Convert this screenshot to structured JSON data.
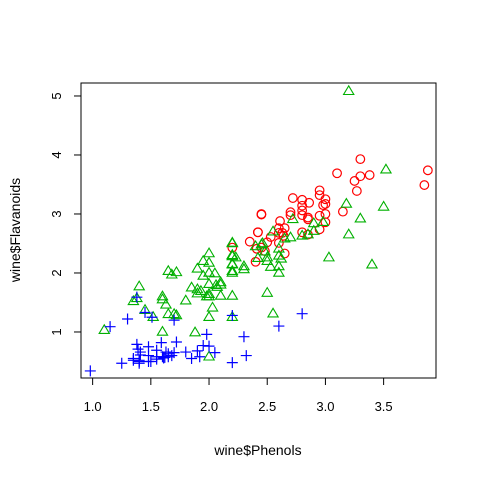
{
  "chart_data": {
    "type": "scatter",
    "title": "",
    "xlabel": "wine$Phenols",
    "ylabel": "wine$Flavanoids",
    "xlim": [
      0.9,
      3.95
    ],
    "ylim": [
      0.22,
      5.22
    ],
    "x_ticks": [
      1.0,
      1.5,
      2.0,
      2.5,
      3.0,
      3.5
    ],
    "x_tick_labels": [
      "1.0",
      "1.5",
      "2.0",
      "2.5",
      "3.0",
      "3.5"
    ],
    "y_ticks": [
      1,
      2,
      3,
      4,
      5
    ],
    "y_tick_labels": [
      "1",
      "2",
      "3",
      "4",
      "5"
    ],
    "grid": false,
    "legend": "none",
    "series": [
      {
        "marker": "circle",
        "color": "#ff0000",
        "points": [
          [
            2.8,
            3.06
          ],
          [
            2.65,
            2.76
          ],
          [
            2.8,
            3.24
          ],
          [
            3.85,
            3.49
          ],
          [
            2.8,
            2.69
          ],
          [
            3.27,
            3.39
          ],
          [
            2.5,
            2.52
          ],
          [
            2.6,
            2.51
          ],
          [
            2.8,
            2.98
          ],
          [
            2.98,
            3.15
          ],
          [
            2.95,
            3.32
          ],
          [
            2.2,
            2.43
          ],
          [
            2.6,
            2.76
          ],
          [
            3.1,
            3.69
          ],
          [
            3.3,
            3.64
          ],
          [
            2.85,
            2.91
          ],
          [
            2.8,
            3.14
          ],
          [
            2.95,
            3.4
          ],
          [
            3.3,
            3.93
          ],
          [
            2.7,
            3.03
          ],
          [
            3.0,
            3.17
          ],
          [
            2.41,
            2.41
          ],
          [
            2.61,
            2.88
          ],
          [
            2.48,
            2.37
          ],
          [
            2.53,
            2.61
          ],
          [
            2.63,
            2.68
          ],
          [
            2.85,
            2.94
          ],
          [
            2.4,
            2.19
          ],
          [
            2.95,
            2.97
          ],
          [
            2.65,
            2.33
          ],
          [
            3.0,
            3.25
          ],
          [
            2.86,
            3.19
          ],
          [
            2.42,
            2.69
          ],
          [
            2.95,
            2.74
          ],
          [
            2.35,
            2.53
          ],
          [
            2.7,
            2.98
          ],
          [
            2.6,
            2.68
          ],
          [
            2.45,
            2.43
          ],
          [
            3.15,
            3.04
          ],
          [
            2.45,
            3.0
          ],
          [
            3.25,
            3.56
          ],
          [
            2.64,
            2.63
          ],
          [
            3.0,
            3.0
          ],
          [
            2.85,
            2.65
          ],
          [
            3.88,
            3.74
          ],
          [
            2.72,
            3.27
          ],
          [
            2.45,
            2.99
          ],
          [
            3.38,
            3.66
          ],
          [
            3.0,
            2.86
          ],
          [
            2.42,
            2.69
          ]
        ]
      },
      {
        "marker": "triangle",
        "color": "#00b000",
        "points": [
          [
            1.1,
            1.03
          ],
          [
            2.2,
            2.5
          ],
          [
            2.2,
            2.3
          ],
          [
            2.0,
            1.6
          ],
          [
            2.5,
            2.2
          ],
          [
            2.6,
            2.11
          ],
          [
            2.5,
            1.66
          ],
          [
            2.2,
            2.0
          ],
          [
            2.2,
            2.3
          ],
          [
            1.65,
            1.3
          ],
          [
            2.8,
            2.63
          ],
          [
            1.95,
            2.2
          ],
          [
            1.6,
            1.55
          ],
          [
            2.1,
            1.8
          ],
          [
            2.0,
            2.0
          ],
          [
            1.65,
            2.03
          ],
          [
            1.6,
            1.0
          ],
          [
            2.3,
            2.11
          ],
          [
            2.45,
            2.48
          ],
          [
            2.6,
            2.0
          ],
          [
            3.2,
            5.08
          ],
          [
            2.65,
            2.58
          ],
          [
            1.9,
            2.07
          ],
          [
            1.72,
            2.01
          ],
          [
            2.2,
            2.15
          ],
          [
            2.0,
            1.81
          ],
          [
            2.98,
            2.86
          ],
          [
            2.2,
            2.14
          ],
          [
            2.3,
            2.06
          ],
          [
            2.4,
            2.45
          ],
          [
            2.6,
            2.29
          ],
          [
            2.53,
            2.1
          ],
          [
            2.0,
            2.17
          ],
          [
            1.98,
            1.6
          ],
          [
            1.38,
            1.57
          ],
          [
            1.4,
            1.77
          ],
          [
            2.46,
            2.5
          ],
          [
            2.0,
            2.33
          ],
          [
            2.55,
            2.7
          ],
          [
            2.0,
            1.64
          ],
          [
            3.52,
            3.75
          ],
          [
            3.5,
            3.12
          ],
          [
            3.3,
            2.92
          ],
          [
            2.2,
            1.25
          ],
          [
            1.52,
            1.25
          ],
          [
            1.7,
            1.3
          ],
          [
            1.85,
            1.75
          ],
          [
            2.06,
            1.79
          ],
          [
            1.9,
            1.72
          ],
          [
            1.72,
            1.28
          ],
          [
            2.55,
            1.31
          ],
          [
            1.35,
            1.52
          ],
          [
            1.88,
            0.99
          ],
          [
            2.62,
            2.24
          ],
          [
            2.48,
            2.36
          ],
          [
            2.05,
            1.99
          ],
          [
            3.4,
            2.14
          ],
          [
            2.42,
            2.25
          ],
          [
            2.2,
            2.03
          ],
          [
            2.72,
            2.91
          ],
          [
            2.2,
            1.61
          ],
          [
            1.93,
            1.69
          ],
          [
            2.0,
            1.25
          ],
          [
            1.45,
            1.37
          ],
          [
            1.8,
            1.53
          ],
          [
            2.07,
            1.76
          ],
          [
            1.6,
            1.6
          ],
          [
            1.9,
            1.65
          ],
          [
            1.68,
            1.97
          ],
          [
            2.1,
            1.84
          ],
          [
            2.0,
            0.58
          ],
          [
            2.03,
            1.41
          ],
          [
            2.9,
            2.71
          ],
          [
            2.2,
            2.51
          ],
          [
            3.2,
            2.65
          ],
          [
            2.5,
            2.26
          ],
          [
            3.18,
            3.17
          ],
          [
            2.85,
            2.65
          ],
          [
            2.7,
            2.6
          ],
          [
            2.9,
            2.84
          ],
          [
            2.23,
            2.26
          ],
          [
            1.63,
            1.46
          ],
          [
            1.95,
            1.95
          ],
          [
            2.6,
            2.41
          ],
          [
            3.03,
            2.26
          ],
          [
            2.1,
            1.61
          ],
          [
            2.2,
            2.28
          ]
        ]
      },
      {
        "marker": "plus",
        "color": "#0000ff",
        "points": [
          [
            1.51,
            1.25
          ],
          [
            1.3,
            1.22
          ],
          [
            1.15,
            1.09
          ],
          [
            1.7,
            1.2
          ],
          [
            1.92,
            0.58
          ],
          [
            1.41,
            0.66
          ],
          [
            1.4,
            0.47
          ],
          [
            1.48,
            0.6
          ],
          [
            2.2,
            0.48
          ],
          [
            1.8,
            0.66
          ],
          [
            1.48,
            0.5
          ],
          [
            1.72,
            0.83
          ],
          [
            1.35,
            0.55
          ],
          [
            1.62,
            0.57
          ],
          [
            1.48,
            0.75
          ],
          [
            1.25,
            0.47
          ],
          [
            1.4,
            0.5
          ],
          [
            1.55,
            0.69
          ],
          [
            1.4,
            0.52
          ],
          [
            1.55,
            0.58
          ],
          [
            1.59,
            0.82
          ],
          [
            2.0,
            0.76
          ],
          [
            1.38,
            0.79
          ],
          [
            1.65,
            0.63
          ],
          [
            1.7,
            0.65
          ],
          [
            1.39,
            0.71
          ],
          [
            1.63,
            0.66
          ],
          [
            1.9,
            0.68
          ],
          [
            1.45,
            1.33
          ],
          [
            1.85,
            0.55
          ],
          [
            1.98,
            0.96
          ],
          [
            1.6,
            0.58
          ],
          [
            2.3,
            0.92
          ],
          [
            0.98,
            0.34
          ],
          [
            1.41,
            0.61
          ],
          [
            2.8,
            1.31
          ],
          [
            2.05,
            0.65
          ],
          [
            1.68,
            0.6
          ],
          [
            1.65,
            0.58
          ],
          [
            1.95,
            0.77
          ],
          [
            1.55,
            0.54
          ],
          [
            1.61,
            0.56
          ],
          [
            1.35,
            0.52
          ],
          [
            2.2,
            1.28
          ],
          [
            1.5,
            0.5
          ],
          [
            1.38,
            1.59
          ],
          [
            2.6,
            1.1
          ],
          [
            2.32,
            0.6
          ]
        ]
      }
    ]
  }
}
